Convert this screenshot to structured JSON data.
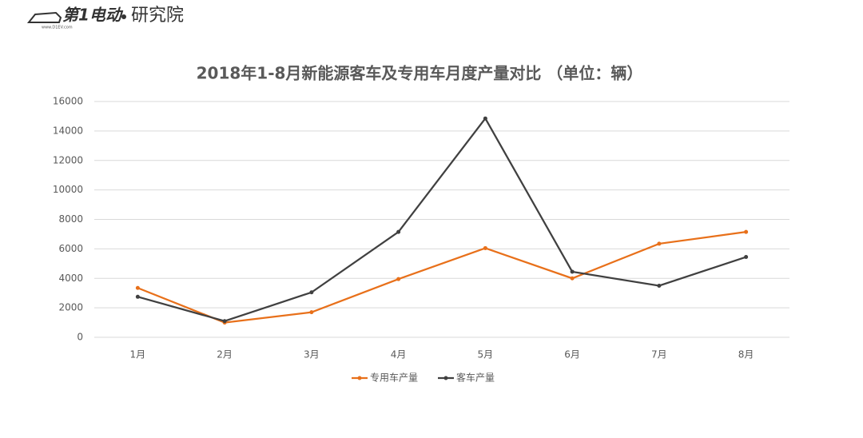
{
  "logo": {
    "brand": "第1电动",
    "site": "www.D1EV.com",
    "dept": "研究院"
  },
  "chart_data": {
    "type": "line",
    "title": "2018年1-8月新能源客车及专用车月度产量对比 （单位：辆）",
    "categories": [
      "1月",
      "2月",
      "3月",
      "4月",
      "5月",
      "6月",
      "7月",
      "8月"
    ],
    "series": [
      {
        "name": "专用车产量",
        "color": "#e8701a",
        "values": [
          3350,
          1000,
          1700,
          3950,
          6050,
          4000,
          6350,
          7150
        ]
      },
      {
        "name": "客车产量",
        "color": "#404040",
        "values": [
          2750,
          1100,
          3050,
          7150,
          14850,
          4450,
          3500,
          5450
        ]
      }
    ],
    "ylim": [
      0,
      16000
    ],
    "yticks": [
      0,
      2000,
      4000,
      6000,
      8000,
      10000,
      12000,
      14000,
      16000
    ],
    "grid": true,
    "legend": "bottom"
  }
}
